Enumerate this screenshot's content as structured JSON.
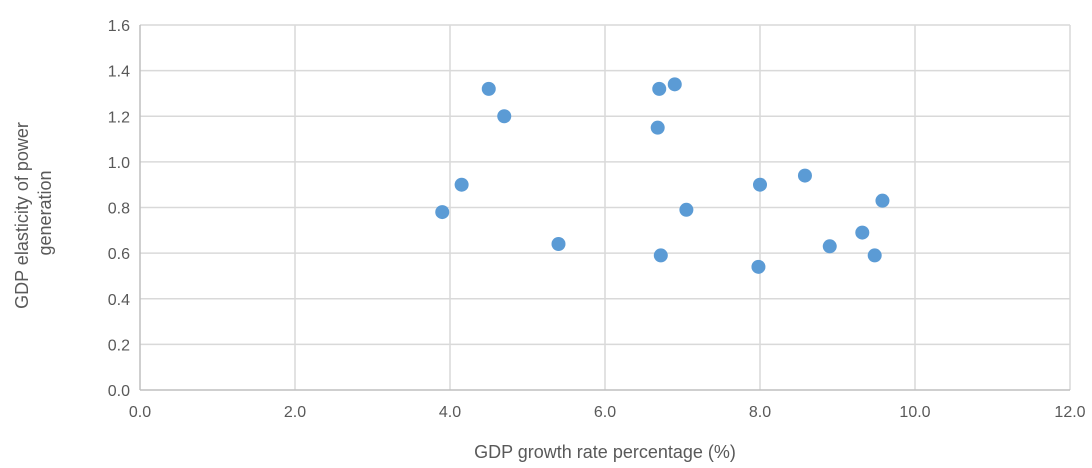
{
  "chart_data": {
    "type": "scatter",
    "title": "",
    "xlabel": "GDP growth rate percentage (%)",
    "ylabel": [
      "GDP elasticity of power",
      "generation"
    ],
    "xlim": [
      0,
      12
    ],
    "ylim": [
      0,
      1.6
    ],
    "x_ticks": [
      "0.0",
      "2.0",
      "4.0",
      "6.0",
      "8.0",
      "10.0",
      "12.0"
    ],
    "y_ticks": [
      "0.0",
      "0.2",
      "0.4",
      "0.6",
      "0.8",
      "1.0",
      "1.2",
      "1.4",
      "1.6"
    ],
    "grid": true,
    "legend": "none",
    "marker_color": "#5B9BD5",
    "points": [
      {
        "x": 3.9,
        "y": 0.78
      },
      {
        "x": 4.15,
        "y": 0.9
      },
      {
        "x": 4.5,
        "y": 1.32
      },
      {
        "x": 4.7,
        "y": 1.2
      },
      {
        "x": 5.4,
        "y": 0.64
      },
      {
        "x": 6.68,
        "y": 1.15
      },
      {
        "x": 6.7,
        "y": 1.32
      },
      {
        "x": 6.72,
        "y": 0.59
      },
      {
        "x": 6.9,
        "y": 1.34
      },
      {
        "x": 7.05,
        "y": 0.79
      },
      {
        "x": 7.98,
        "y": 0.54
      },
      {
        "x": 8.0,
        "y": 0.9
      },
      {
        "x": 8.58,
        "y": 0.94
      },
      {
        "x": 8.9,
        "y": 0.63
      },
      {
        "x": 9.32,
        "y": 0.69
      },
      {
        "x": 9.48,
        "y": 0.59
      },
      {
        "x": 9.58,
        "y": 0.83
      }
    ]
  }
}
